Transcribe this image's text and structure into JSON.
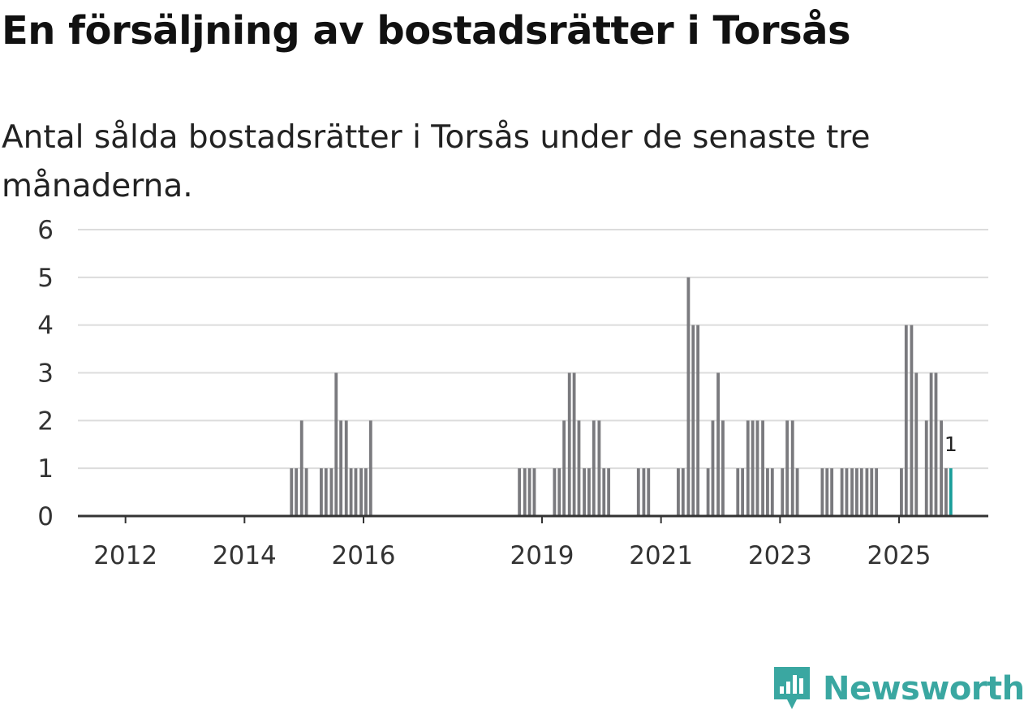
{
  "title": "En försäljning av bostadsrätter i Torsås",
  "subtitle": "Antal sålda bostadsrätter i Torsås under de senaste tre månaderna.",
  "brand": {
    "name": "Newsworthy"
  },
  "colors": {
    "bar": "#7a7a7e",
    "highlight": "#1a9e9a",
    "grid": "#dcdcdc",
    "axis": "#333333",
    "brand": "#3aa7a1"
  },
  "chart_data": {
    "type": "bar",
    "title": "En försäljning av bostadsrätter i Torsås",
    "xlabel": "",
    "ylabel": "Antal sålda bostadsrätter",
    "ylim": [
      0,
      6
    ],
    "yticks": [
      0,
      1,
      2,
      3,
      4,
      5,
      6
    ],
    "xlim": [
      2011.2,
      2026.5
    ],
    "xticks": [
      {
        "value": 2012.0,
        "label": "2012"
      },
      {
        "value": 2014.0,
        "label": "2014"
      },
      {
        "value": 2016.0,
        "label": "2016"
      },
      {
        "value": 2019.0,
        "label": "2019"
      },
      {
        "value": 2021.0,
        "label": "2021"
      },
      {
        "value": 2023.0,
        "label": "2023"
      },
      {
        "value": 2025.0,
        "label": "2025"
      }
    ],
    "bar_width_years": 0.052,
    "x": [
      2014.79,
      2014.87,
      2014.96,
      2015.04,
      2015.29,
      2015.37,
      2015.46,
      2015.54,
      2015.62,
      2015.71,
      2015.79,
      2015.87,
      2015.96,
      2016.04,
      2016.12,
      2018.62,
      2018.71,
      2018.79,
      2018.87,
      2019.21,
      2019.29,
      2019.37,
      2019.46,
      2019.54,
      2019.62,
      2019.71,
      2019.79,
      2019.87,
      2019.96,
      2020.04,
      2020.12,
      2020.62,
      2020.71,
      2020.79,
      2021.29,
      2021.37,
      2021.46,
      2021.54,
      2021.62,
      2021.79,
      2021.87,
      2021.96,
      2022.04,
      2022.29,
      2022.37,
      2022.46,
      2022.54,
      2022.62,
      2022.71,
      2022.79,
      2022.87,
      2023.04,
      2023.12,
      2023.21,
      2023.29,
      2023.71,
      2023.79,
      2023.87,
      2024.04,
      2024.12,
      2024.21,
      2024.29,
      2024.37,
      2024.46,
      2024.54,
      2024.62,
      2025.04,
      2025.12,
      2025.21,
      2025.29,
      2025.46,
      2025.54,
      2025.62,
      2025.71,
      2025.79,
      2025.87
    ],
    "values": [
      1,
      1,
      2,
      1,
      1,
      1,
      1,
      3,
      2,
      2,
      1,
      1,
      1,
      1,
      2,
      1,
      1,
      1,
      1,
      1,
      1,
      2,
      3,
      3,
      2,
      1,
      1,
      2,
      2,
      1,
      1,
      1,
      1,
      1,
      1,
      1,
      5,
      4,
      4,
      1,
      2,
      3,
      2,
      1,
      1,
      2,
      2,
      2,
      2,
      1,
      1,
      1,
      2,
      2,
      1,
      1,
      1,
      1,
      1,
      1,
      1,
      1,
      1,
      1,
      1,
      1,
      1,
      4,
      4,
      3,
      2,
      3,
      3,
      2,
      1,
      1
    ],
    "highlight_last": true,
    "annotations": [
      {
        "x": 2025.87,
        "value": 1,
        "label": "1"
      }
    ]
  }
}
